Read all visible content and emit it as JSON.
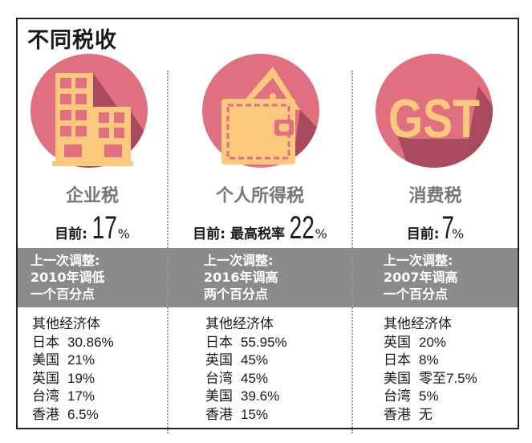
{
  "title": "不同税收",
  "colors": {
    "circle": "#e06f80",
    "shadow": "#a94a5e",
    "icon": "#fbc87e",
    "band": "#8b8b8d",
    "name": "#777777"
  },
  "columns": [
    {
      "icon": "building-icon",
      "name": "企业税",
      "rate_label": "目前:",
      "rate_value": "17",
      "rate_unit": "%",
      "adjust": [
        "上一次调整:",
        "2010年调低",
        "一个百分点"
      ],
      "others_title": "其他经济体",
      "others": [
        {
          "country": "日本",
          "value": "30.86%"
        },
        {
          "country": "美国",
          "value": "21%"
        },
        {
          "country": "英国",
          "value": "19%"
        },
        {
          "country": "台湾",
          "value": "17%"
        },
        {
          "country": "香港",
          "value": "6.5%"
        }
      ]
    },
    {
      "icon": "wallet-icon",
      "name": "个人所得税",
      "rate_label": "目前: 最高税率",
      "rate_value": "22",
      "rate_unit": "%",
      "adjust": [
        "上一次调整:",
        "2016年调高",
        "两个百分点"
      ],
      "others_title": "其他经济体",
      "others": [
        {
          "country": "日本",
          "value": "55.95%"
        },
        {
          "country": "英国",
          "value": "45%"
        },
        {
          "country": "台湾",
          "value": "45%"
        },
        {
          "country": "美国",
          "value": "39.6%"
        },
        {
          "country": "香港",
          "value": "15%"
        }
      ]
    },
    {
      "icon": "gst-icon",
      "icon_text": "GST",
      "name": "消费税",
      "rate_label": "目前:",
      "rate_value": "7",
      "rate_unit": "%",
      "adjust": [
        "上一次调整:",
        "2007年调高",
        "一个百分点"
      ],
      "others_title": "其他经济体",
      "others": [
        {
          "country": "英国",
          "value": "20%"
        },
        {
          "country": "日本",
          "value": "8%"
        },
        {
          "country": "美国",
          "value": "零至7.5%"
        },
        {
          "country": "台湾",
          "value": "5%"
        },
        {
          "country": "香港",
          "value": "无"
        }
      ]
    }
  ]
}
